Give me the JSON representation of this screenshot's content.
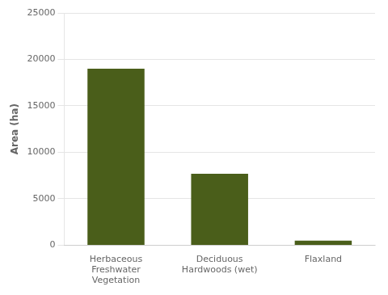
{
  "chart_data": {
    "type": "bar",
    "ylabel": "Area (ha)",
    "categories": [
      "Herbaceous\nFreshwater\nVegetation",
      "Deciduous\nHardwoods (wet)",
      "Flaxland"
    ],
    "values": [
      19000,
      7700,
      500
    ],
    "color": "#4a5e1a",
    "ylim": [
      0,
      25000
    ],
    "yticks": [
      0,
      5000,
      10000,
      15000,
      20000,
      25000
    ],
    "grid": true
  }
}
